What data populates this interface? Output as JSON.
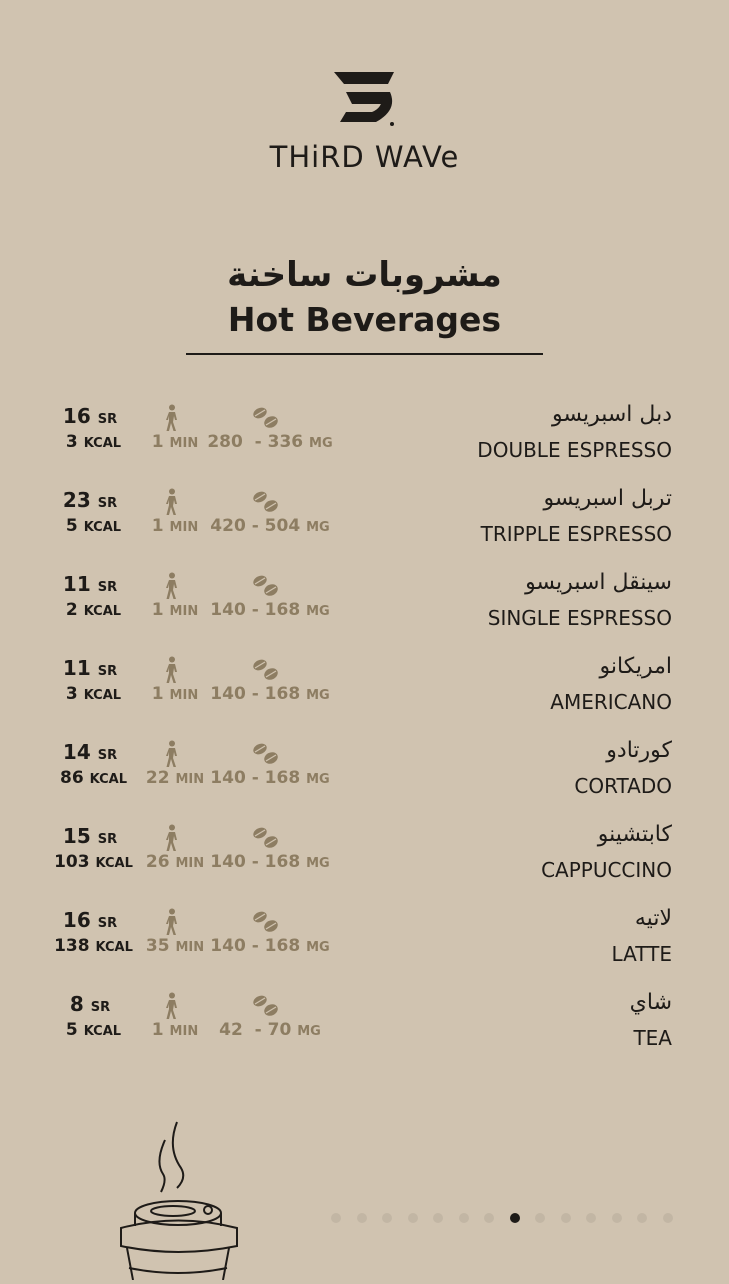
{
  "brand": {
    "name": "THiRD WAVe"
  },
  "header": {
    "title_ar": "مشروبات ساخنة",
    "title_en": "Hot Beverages"
  },
  "units": {
    "currency": "SR",
    "calories": "KCAL",
    "time": "MIN",
    "caffeine": "MG"
  },
  "items": [
    {
      "ar": "دبل اسبريسو",
      "en": "DOUBLE ESPRESSO",
      "price": "16",
      "kcal": "3",
      "min": "1",
      "mg": "280  - 336"
    },
    {
      "ar": "تربل اسبريسو",
      "en": "TRIPPLE ESPRESSO",
      "price": "23",
      "kcal": "5",
      "min": "1",
      "mg": "420 - 504"
    },
    {
      "ar": "سينقل اسبريسو",
      "en": "SINGLE ESPRESSO",
      "price": "11",
      "kcal": "2",
      "min": "1",
      "mg": "140 - 168"
    },
    {
      "ar": "امريكانو",
      "en": "AMERICANO",
      "price": "11",
      "kcal": "3",
      "min": "1",
      "mg": "140 - 168"
    },
    {
      "ar": "كورتادو",
      "en": "CORTADO",
      "price": "14",
      "kcal": "86",
      "min": "22",
      "mg": "140 - 168"
    },
    {
      "ar": "كابتشينو",
      "en": "CAPPUCCINO",
      "price": "15",
      "kcal": "103",
      "min": "26",
      "mg": "140 - 168"
    },
    {
      "ar": "لاتيه",
      "en": "LATTE",
      "price": "16",
      "kcal": "138",
      "min": "35",
      "mg": "140 - 168"
    },
    {
      "ar": "شاي",
      "en": "TEA",
      "price": "8",
      "kcal": "5",
      "min": "1",
      "mg": "42  - 70"
    }
  ],
  "pager": {
    "total": 14,
    "active": 8
  },
  "colors": {
    "background": "#d0c3b0",
    "text": "#1e1b18",
    "muted": "#8d7d62"
  },
  "icons": {
    "walk": "walking-person-icon",
    "caffeine": "coffee-beans-icon"
  }
}
